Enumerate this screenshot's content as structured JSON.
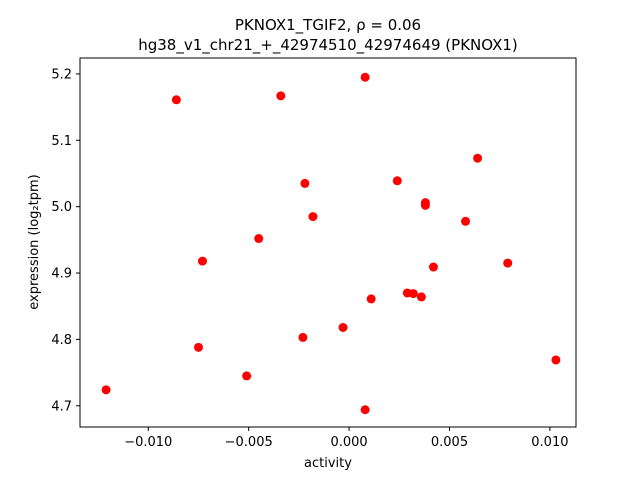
{
  "chart_data": {
    "type": "scatter",
    "title_line1": "PKNOX1_TGIF2, ρ = 0.06",
    "title_line2": "hg38_v1_chr21_+_42974510_42974649 (PKNOX1)",
    "xlabel": "activity",
    "ylabel": "expression (log₂tpm)",
    "xlim": [
      -0.0134,
      0.0113
    ],
    "ylim": [
      4.668,
      5.224
    ],
    "xticks": [
      -0.01,
      -0.005,
      0.0,
      0.005,
      0.01
    ],
    "xtick_labels": [
      "−0.010",
      "−0.005",
      "0.000",
      "0.005",
      "0.010"
    ],
    "yticks": [
      4.7,
      4.8,
      4.9,
      5.0,
      5.1,
      5.2
    ],
    "ytick_labels": [
      "4.7",
      "4.8",
      "4.9",
      "5.0",
      "5.1",
      "5.2"
    ],
    "marker_color": "#ff0000",
    "grid": false,
    "points": [
      {
        "x": 0.0008,
        "y": 5.195
      },
      {
        "x": -0.0086,
        "y": 5.161
      },
      {
        "x": -0.0034,
        "y": 5.167
      },
      {
        "x": 0.0064,
        "y": 5.073
      },
      {
        "x": -0.0022,
        "y": 5.035
      },
      {
        "x": 0.0024,
        "y": 5.039
      },
      {
        "x": 0.0038,
        "y": 5.006
      },
      {
        "x": 0.0038,
        "y": 5.002
      },
      {
        "x": -0.0018,
        "y": 4.985
      },
      {
        "x": 0.0058,
        "y": 4.978
      },
      {
        "x": -0.0045,
        "y": 4.952
      },
      {
        "x": -0.0073,
        "y": 4.918
      },
      {
        "x": 0.0079,
        "y": 4.915
      },
      {
        "x": 0.0042,
        "y": 4.909
      },
      {
        "x": 0.0029,
        "y": 4.87
      },
      {
        "x": 0.0032,
        "y": 4.869
      },
      {
        "x": 0.0036,
        "y": 4.864
      },
      {
        "x": 0.0011,
        "y": 4.861
      },
      {
        "x": -0.0003,
        "y": 4.818
      },
      {
        "x": -0.0023,
        "y": 4.803
      },
      {
        "x": -0.0075,
        "y": 4.788
      },
      {
        "x": 0.0103,
        "y": 4.769
      },
      {
        "x": -0.0051,
        "y": 4.745
      },
      {
        "x": -0.0121,
        "y": 4.724
      },
      {
        "x": 0.0008,
        "y": 4.694
      }
    ]
  }
}
